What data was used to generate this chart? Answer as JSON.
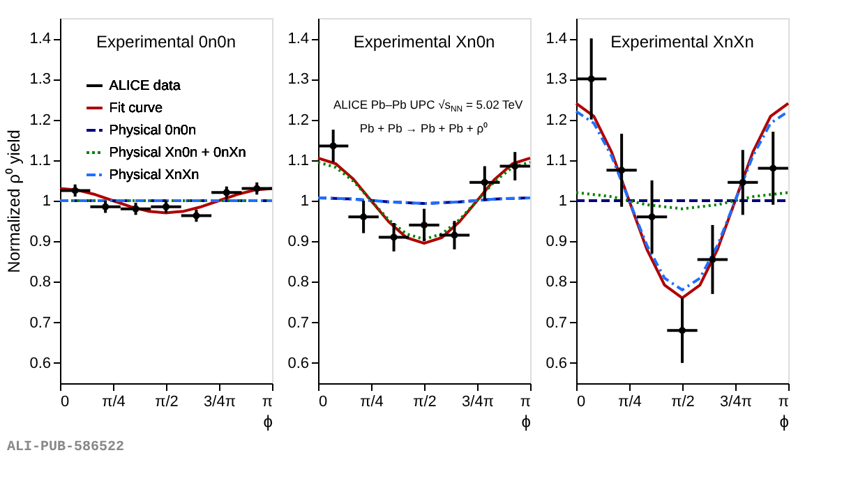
{
  "chart_data": [
    {
      "type": "line",
      "title": "Experimental 0n0n",
      "xlabel": "ϕ",
      "ylabel": "Normalized ρ⁰ yield",
      "legend": "top",
      "annotations": [
        "ALI-PUB-586522"
      ],
      "xlim": [
        0,
        3.142
      ],
      "xticks": [
        0,
        {
          "value": 0.785,
          "label": "π/4"
        },
        {
          "value": 1.571,
          "label": "π/2"
        },
        {
          "value": 2.356,
          "label": "3/4π"
        },
        {
          "value": 3.142,
          "label": "π"
        }
      ],
      "ylim": [
        0.55,
        1.45
      ],
      "yticks": [
        0.6,
        0.7,
        0.8,
        0.9,
        1,
        1.1,
        1.2,
        1.3,
        1.4
      ],
      "series": [
        {
          "name": "ALICE data",
          "type": "scatter",
          "marker": "circle",
          "color": "#000000",
          "x": [
            0.224,
            0.673,
            1.122,
            1.571,
            2.02,
            2.468,
            2.917
          ],
          "values": [
            1.025,
            0.985,
            0.98,
            0.985,
            0.963,
            1.02,
            1.03
          ],
          "errors": [
            0.015,
            0.015,
            0.015,
            0.015,
            0.015,
            0.015,
            0.015
          ],
          "xerrors": [
            0.224,
            0.224,
            0.224,
            0.224,
            0.224,
            0.224,
            0.224
          ]
        },
        {
          "name": "Fit curve",
          "line_style": "solid",
          "color": "#b00000",
          "x": [
            0,
            0.262,
            0.524,
            0.785,
            1.047,
            1.309,
            1.571,
            1.833,
            2.094,
            2.356,
            2.618,
            2.88,
            3.142
          ],
          "values": [
            1.03,
            1.026,
            1.015,
            1.0,
            0.985,
            0.974,
            0.97,
            0.974,
            0.985,
            1.0,
            1.015,
            1.026,
            1.03
          ]
        },
        {
          "name": "Physical 0n0n",
          "line_style": "dashed",
          "color": "#000080",
          "x": [
            0,
            3.142
          ],
          "values": [
            1.0,
            1.0
          ]
        },
        {
          "name": "Physical Xn0n + 0nXn",
          "line_style": "dotted",
          "color": "#008000",
          "x": [
            0,
            3.142
          ],
          "values": [
            1.0,
            1.0
          ]
        },
        {
          "name": "Physical XnXn",
          "line_style": "dashdot",
          "color": "#1e6fff",
          "x": [
            0,
            3.142
          ],
          "values": [
            1.0,
            1.0
          ]
        }
      ]
    },
    {
      "type": "line",
      "title": "Experimental Xn0n",
      "xlabel": "ϕ",
      "annotations": [
        "ALICE Pb–Pb UPC √s$_{NN}$ = 5.02 TeV",
        "Pb + Pb → Pb + Pb + ρ⁰"
      ],
      "xlim": [
        0,
        3.142
      ],
      "xticks": [
        0,
        {
          "value": 0.785,
          "label": "π/4"
        },
        {
          "value": 1.571,
          "label": "π/2"
        },
        {
          "value": 2.356,
          "label": "3/4π"
        },
        {
          "value": 3.142,
          "label": "π"
        }
      ],
      "ylim": [
        0.55,
        1.45
      ],
      "yticks": [
        0.6,
        0.7,
        0.8,
        0.9,
        1,
        1.1,
        1.2,
        1.3,
        1.4
      ],
      "series": [
        {
          "type": "scatter",
          "marker": "circle",
          "color": "#000000",
          "x": [
            0.224,
            0.673,
            1.122,
            1.571,
            2.02,
            2.468,
            2.917
          ],
          "values": [
            1.135,
            0.96,
            0.91,
            0.94,
            0.915,
            1.045,
            1.085
          ],
          "errors": [
            0.04,
            0.04,
            0.035,
            0.04,
            0.035,
            0.04,
            0.035
          ],
          "xerrors": [
            0.224,
            0.224,
            0.224,
            0.224,
            0.224,
            0.224,
            0.224
          ]
        },
        {
          "line_style": "solid",
          "color": "#b00000",
          "x": [
            0,
            0.262,
            0.524,
            0.785,
            1.047,
            1.309,
            1.571,
            1.833,
            2.094,
            2.356,
            2.618,
            2.88,
            3.142
          ],
          "values": [
            1.105,
            1.091,
            1.053,
            1.0,
            0.948,
            0.909,
            0.895,
            0.909,
            0.948,
            1.0,
            1.053,
            1.091,
            1.105
          ]
        },
        {
          "line_style": "dashed",
          "color": "#000080",
          "x": [
            0,
            0.524,
            1.047,
            1.571,
            2.094,
            2.618,
            3.142
          ],
          "values": [
            1.007,
            1.004,
            0.997,
            0.993,
            0.997,
            1.004,
            1.007
          ]
        },
        {
          "line_style": "dotted",
          "color": "#008000",
          "x": [
            0,
            0.262,
            0.524,
            0.785,
            1.047,
            1.309,
            1.571,
            1.833,
            2.094,
            2.356,
            2.618,
            2.88,
            3.142
          ],
          "values": [
            1.095,
            1.082,
            1.048,
            1.0,
            0.953,
            0.918,
            0.905,
            0.918,
            0.953,
            1.0,
            1.048,
            1.082,
            1.095
          ]
        },
        {
          "line_style": "dashdot",
          "color": "#1e6fff",
          "x": [
            0,
            0.524,
            1.047,
            1.571,
            2.094,
            2.618,
            3.142
          ],
          "values": [
            1.007,
            1.004,
            0.997,
            0.993,
            0.997,
            1.004,
            1.007
          ]
        }
      ]
    },
    {
      "type": "line",
      "title": "Experimental XnXn",
      "xlabel": "ϕ",
      "xlim": [
        0,
        3.142
      ],
      "xticks": [
        0,
        {
          "value": 0.785,
          "label": "π/4"
        },
        {
          "value": 1.571,
          "label": "π/2"
        },
        {
          "value": 2.356,
          "label": "3/4π"
        },
        {
          "value": 3.142,
          "label": "π"
        }
      ],
      "ylim": [
        0.55,
        1.45
      ],
      "yticks": [
        0.6,
        0.7,
        0.8,
        0.9,
        1,
        1.1,
        1.2,
        1.3,
        1.4
      ],
      "series": [
        {
          "type": "scatter",
          "marker": "circle",
          "color": "#000000",
          "x": [
            0.224,
            0.673,
            1.122,
            1.571,
            2.02,
            2.468,
            2.917
          ],
          "values": [
            1.3,
            1.075,
            0.96,
            0.68,
            0.855,
            1.045,
            1.08
          ],
          "errors": [
            0.1,
            0.09,
            0.09,
            0.08,
            0.085,
            0.08,
            0.09
          ],
          "xerrors": [
            0.224,
            0.224,
            0.224,
            0.224,
            0.224,
            0.224,
            0.224
          ]
        },
        {
          "line_style": "solid",
          "color": "#b00000",
          "x": [
            0,
            0.262,
            0.524,
            0.785,
            1.047,
            1.309,
            1.571,
            1.833,
            2.094,
            2.356,
            2.618,
            2.88,
            3.142
          ],
          "values": [
            1.24,
            1.208,
            1.12,
            1.0,
            0.88,
            0.792,
            0.76,
            0.792,
            0.88,
            1.0,
            1.12,
            1.208,
            1.24
          ]
        },
        {
          "line_style": "dashed",
          "color": "#000080",
          "x": [
            0,
            3.142
          ],
          "values": [
            1.0,
            1.0
          ]
        },
        {
          "line_style": "dotted",
          "color": "#008000",
          "x": [
            0,
            0.524,
            1.047,
            1.571,
            2.094,
            2.618,
            3.142
          ],
          "values": [
            1.02,
            1.01,
            0.99,
            0.98,
            0.99,
            1.01,
            1.02
          ]
        },
        {
          "line_style": "dashdot",
          "color": "#1e6fff",
          "x": [
            0,
            0.262,
            0.524,
            0.785,
            1.047,
            1.309,
            1.571,
            1.833,
            2.094,
            2.356,
            2.618,
            2.88,
            3.142
          ],
          "values": [
            1.22,
            1.191,
            1.11,
            1.0,
            0.89,
            0.809,
            0.78,
            0.809,
            0.89,
            1.0,
            1.11,
            1.191,
            1.22
          ]
        }
      ]
    }
  ]
}
